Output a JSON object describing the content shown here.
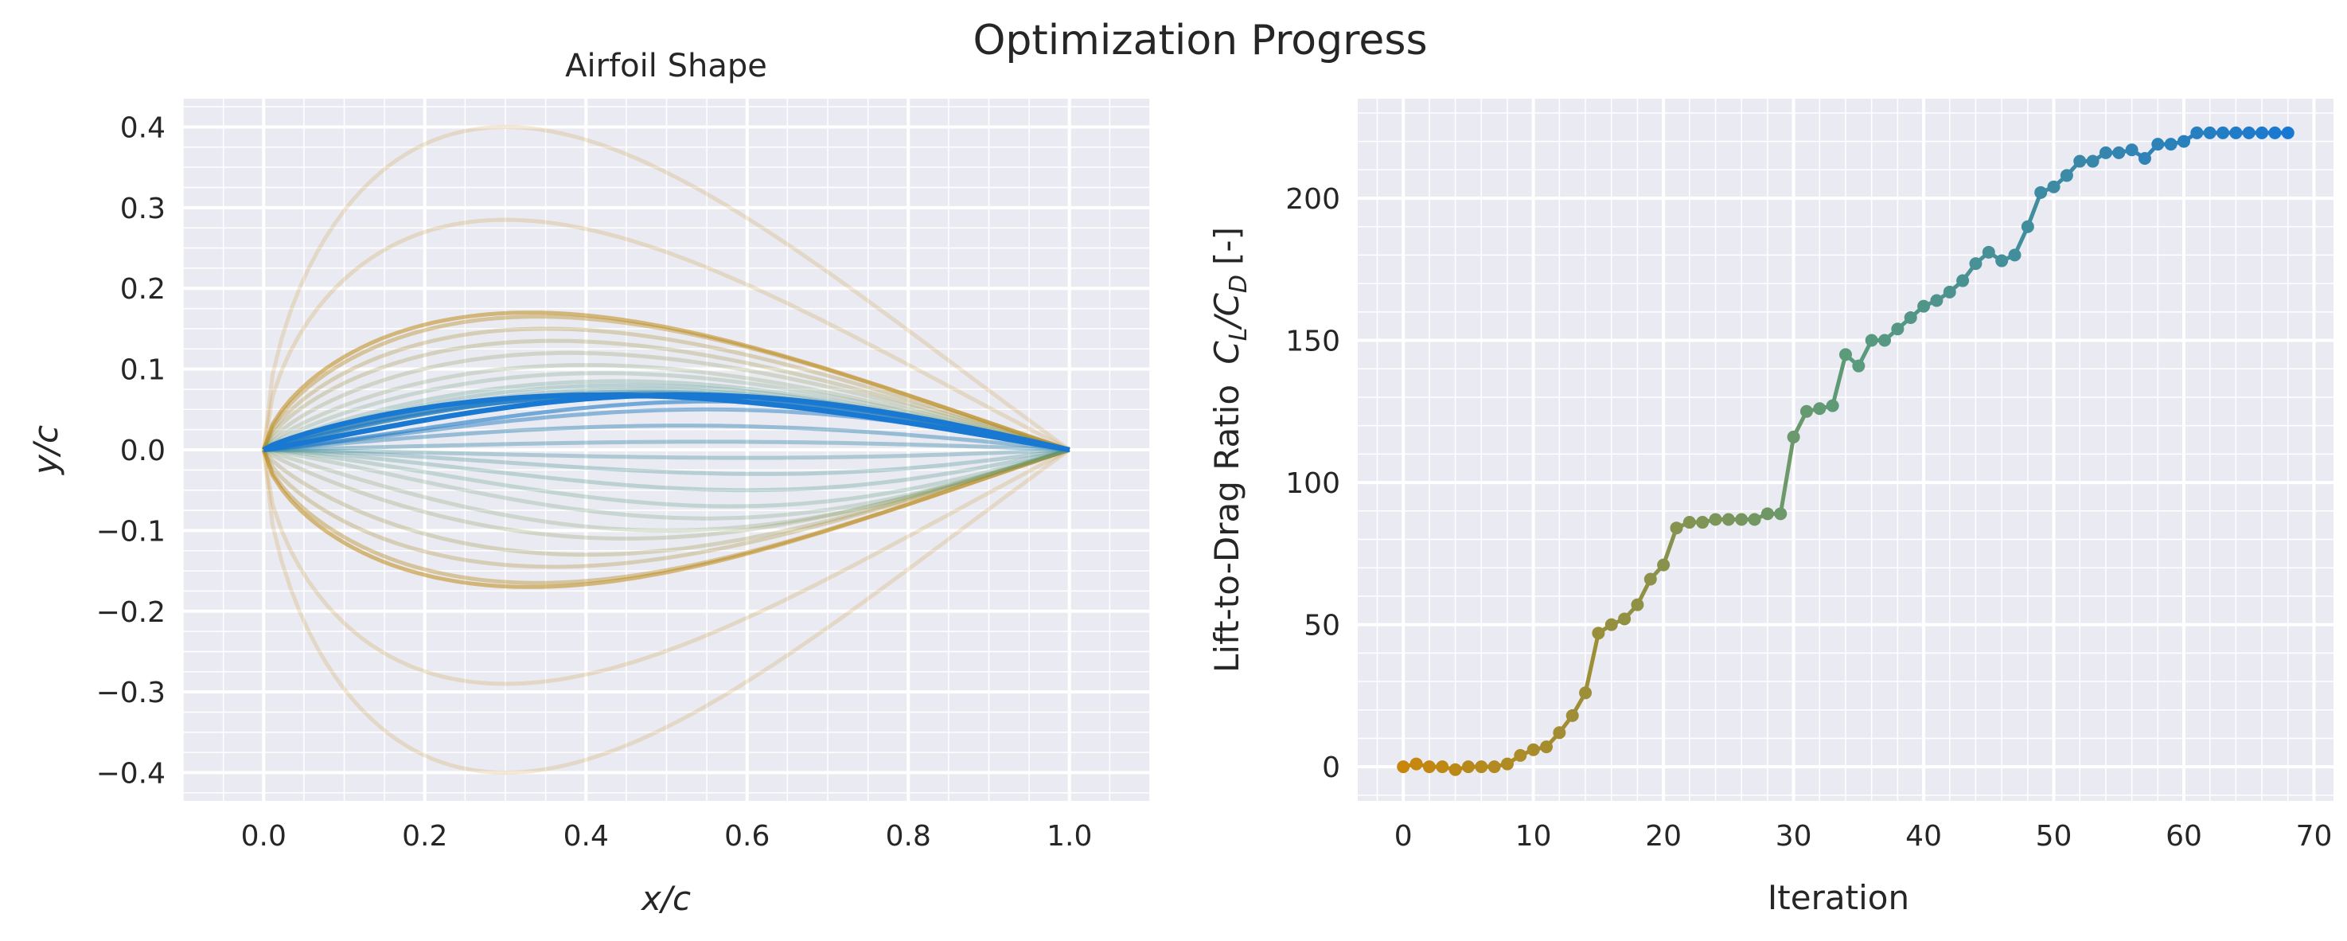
{
  "figure": {
    "suptitle": "Optimization Progress"
  },
  "colors": {
    "axes_bg": "#EAEAF2",
    "grid": "#ffffff",
    "text": "#262626",
    "start": "#C8860A",
    "mid": "#5C9B7A",
    "final": "#1978D2"
  },
  "chart_data": [
    {
      "type": "line",
      "title": "Airfoil Shape",
      "xlabel_base": "x/c",
      "ylabel_base": "y/c",
      "xlim": [
        -0.1,
        1.1
      ],
      "ylim": [
        -0.435,
        0.435
      ],
      "xticks": [
        0.0,
        0.2,
        0.4,
        0.6,
        0.8,
        1.0
      ],
      "xtick_labels": [
        "0.0",
        "0.2",
        "0.4",
        "0.6",
        "0.8",
        "1.0"
      ],
      "yticks": [
        -0.4,
        -0.3,
        -0.2,
        -0.1,
        0.0,
        0.1,
        0.2,
        0.3,
        0.4
      ],
      "ytick_labels": [
        "−0.4",
        "−0.3",
        "−0.2",
        "−0.1",
        "0.0",
        "0.1",
        "0.2",
        "0.3",
        "0.4"
      ],
      "grid": true,
      "minor_grid": true,
      "shape_history": [
        {
          "upper_peak": 0.4,
          "upper_loc": 0.3,
          "lower_peak": -0.4,
          "lower_loc": 0.3,
          "alpha": 0.18,
          "color_t": 0.0
        },
        {
          "upper_peak": 0.285,
          "upper_loc": 0.3,
          "lower_peak": -0.29,
          "lower_loc": 0.3,
          "alpha": 0.2,
          "color_t": 0.02
        },
        {
          "upper_peak": 0.17,
          "upper_loc": 0.33,
          "lower_peak": -0.17,
          "lower_loc": 0.33,
          "alpha": 0.55,
          "color_t": 0.05
        },
        {
          "upper_peak": 0.165,
          "upper_loc": 0.34,
          "lower_peak": -0.165,
          "lower_loc": 0.34,
          "alpha": 0.4,
          "color_t": 0.08
        },
        {
          "upper_peak": 0.15,
          "upper_loc": 0.35,
          "lower_peak": -0.145,
          "lower_loc": 0.36,
          "alpha": 0.3,
          "color_t": 0.15
        },
        {
          "upper_peak": 0.135,
          "upper_loc": 0.36,
          "lower_peak": -0.13,
          "lower_loc": 0.4,
          "alpha": 0.28,
          "color_t": 0.22
        },
        {
          "upper_peak": 0.12,
          "upper_loc": 0.38,
          "lower_peak": -0.11,
          "lower_loc": 0.45,
          "alpha": 0.26,
          "color_t": 0.3
        },
        {
          "upper_peak": 0.105,
          "upper_loc": 0.4,
          "lower_peak": -0.1,
          "lower_loc": 0.5,
          "alpha": 0.25,
          "color_t": 0.38
        },
        {
          "upper_peak": 0.095,
          "upper_loc": 0.42,
          "lower_peak": -0.085,
          "lower_loc": 0.55,
          "alpha": 0.25,
          "color_t": 0.45
        },
        {
          "upper_peak": 0.085,
          "upper_loc": 0.44,
          "lower_peak": -0.07,
          "lower_loc": 0.58,
          "alpha": 0.28,
          "color_t": 0.52
        },
        {
          "upper_peak": 0.08,
          "upper_loc": 0.45,
          "lower_peak": -0.05,
          "lower_loc": 0.6,
          "alpha": 0.3,
          "color_t": 0.58
        },
        {
          "upper_peak": 0.075,
          "upper_loc": 0.46,
          "lower_peak": -0.03,
          "lower_loc": 0.62,
          "alpha": 0.32,
          "color_t": 0.64
        },
        {
          "upper_peak": 0.072,
          "upper_loc": 0.47,
          "lower_peak": -0.01,
          "lower_loc": 0.6,
          "alpha": 0.35,
          "color_t": 0.7
        },
        {
          "upper_peak": 0.07,
          "upper_loc": 0.48,
          "lower_peak": 0.01,
          "lower_loc": 0.55,
          "alpha": 0.4,
          "color_t": 0.76
        },
        {
          "upper_peak": 0.07,
          "upper_loc": 0.48,
          "lower_peak": 0.03,
          "lower_loc": 0.52,
          "alpha": 0.45,
          "color_t": 0.82
        },
        {
          "upper_peak": 0.068,
          "upper_loc": 0.47,
          "lower_peak": 0.05,
          "lower_loc": 0.55,
          "alpha": 0.5,
          "color_t": 0.88
        },
        {
          "upper_peak": 0.066,
          "upper_loc": 0.45,
          "lower_peak": 0.06,
          "lower_loc": 0.56,
          "alpha": 0.6,
          "color_t": 0.94
        }
      ],
      "final_shape": {
        "upper_peak": 0.068,
        "upper_loc": 0.42,
        "lower_peak": 0.068,
        "lower_loc": 0.52
      }
    },
    {
      "type": "line",
      "title": "",
      "xlabel": "Iteration",
      "ylabel_base": "Lift-to-Drag Ratio",
      "ylabel_unit": "[-]",
      "xlim": [
        -3.5,
        71.5
      ],
      "ylim": [
        -12,
        235
      ],
      "xticks": [
        0,
        10,
        20,
        30,
        40,
        50,
        60,
        70
      ],
      "xtick_labels": [
        "0",
        "10",
        "20",
        "30",
        "40",
        "50",
        "60",
        "70"
      ],
      "yticks": [
        0,
        50,
        100,
        150,
        200
      ],
      "ytick_labels": [
        "0",
        "50",
        "100",
        "150",
        "200"
      ],
      "grid": true,
      "minor_grid": true,
      "x": [
        0,
        1,
        2,
        3,
        4,
        5,
        6,
        7,
        8,
        9,
        10,
        11,
        12,
        13,
        14,
        15,
        16,
        17,
        18,
        19,
        20,
        21,
        22,
        23,
        24,
        25,
        26,
        27,
        28,
        29,
        30,
        31,
        32,
        33,
        34,
        35,
        36,
        37,
        38,
        39,
        40,
        41,
        42,
        43,
        44,
        45,
        46,
        47,
        48,
        49,
        50,
        51,
        52,
        53,
        54,
        55,
        56,
        57,
        58,
        59,
        60,
        61,
        62,
        63,
        64,
        65,
        66,
        67,
        68
      ],
      "y": [
        0,
        1,
        0,
        0,
        -1,
        0,
        0,
        0,
        1,
        4,
        6,
        7,
        12,
        18,
        26,
        47,
        50,
        52,
        57,
        66,
        71,
        84,
        86,
        86,
        87,
        87,
        87,
        87,
        89,
        89,
        116,
        125,
        126,
        127,
        145,
        141,
        150,
        150,
        154,
        158,
        162,
        164,
        167,
        171,
        177,
        181,
        178,
        180,
        190,
        202,
        204,
        208,
        213,
        213,
        216,
        216,
        217,
        214,
        219,
        219,
        220,
        223,
        223,
        223,
        223,
        223,
        223,
        223,
        223
      ]
    }
  ]
}
